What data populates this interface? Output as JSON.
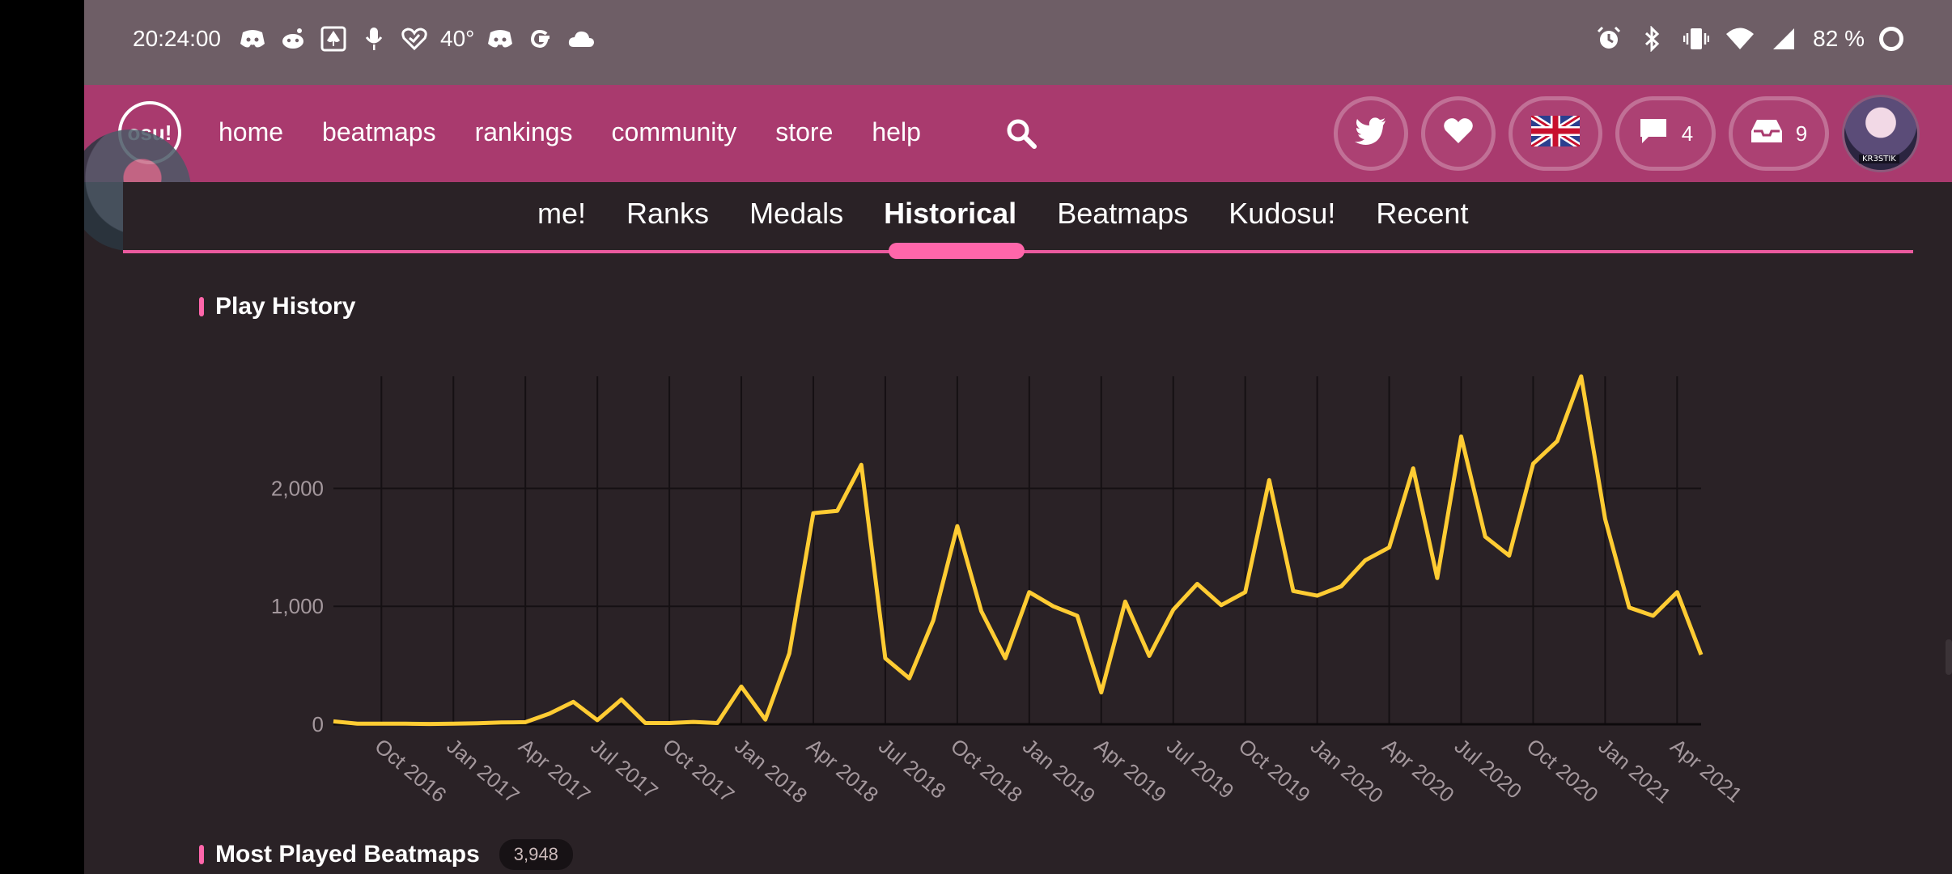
{
  "status_bar": {
    "time": "20:24:00",
    "temperature": "40°",
    "battery": "82 %",
    "left_icons": [
      "discord-icon",
      "reddit-icon",
      "spade-icon",
      "microphone-icon",
      "heart-check-icon"
    ],
    "left_icons_after_temp": [
      "discord-icon",
      "google-icon",
      "cloud-icon"
    ],
    "right_icons": [
      "alarm-icon",
      "bluetooth-icon",
      "vibrate-icon",
      "wifi-icon",
      "signal-icon"
    ]
  },
  "nav": {
    "logo": "osu!",
    "links": [
      "home",
      "beatmaps",
      "rankings",
      "community",
      "store",
      "help"
    ],
    "messages_count": "4",
    "notifications_count": "9",
    "avatar_tag": "KR3STIK"
  },
  "tabs": {
    "items": [
      "me!",
      "Ranks",
      "Medals",
      "Historical",
      "Beatmaps",
      "Kudosu!",
      "Recent"
    ],
    "active": "Historical"
  },
  "sections": {
    "play_history_title": "Play History",
    "most_played_title": "Most Played Beatmaps",
    "most_played_count": "3,948"
  },
  "colors": {
    "accent": "#ff66aa",
    "nav_bg": "#a93a6e",
    "line": "#ffcc33"
  },
  "chart_data": {
    "type": "line",
    "title": "Play History",
    "xlabel": "",
    "ylabel": "",
    "ylim": [
      0,
      2950
    ],
    "y_ticks": [
      0,
      1000,
      2000
    ],
    "y_tick_labels": [
      "0",
      "1,000",
      "2,000"
    ],
    "x_tick_labels": [
      "Oct 2016",
      "Jan 2017",
      "Apr 2017",
      "Jul 2017",
      "Oct 2017",
      "Jan 2018",
      "Apr 2018",
      "Jul 2018",
      "Oct 2018",
      "Jan 2019",
      "Apr 2019",
      "Jul 2019",
      "Oct 2019",
      "Jan 2020",
      "Apr 2020",
      "Jul 2020",
      "Oct 2020",
      "Jan 2021",
      "Apr 2021"
    ],
    "grid": true,
    "series": [
      {
        "values": [
          25,
          5,
          5,
          5,
          3,
          5,
          8,
          15,
          18,
          90,
          190,
          35,
          210,
          10,
          10,
          20,
          10,
          320,
          40,
          600,
          1790,
          1810,
          2200,
          560,
          390,
          880,
          1680,
          960,
          560,
          1120,
          1000,
          920,
          270,
          1040,
          580,
          970,
          1190,
          1010,
          1120,
          2070,
          1130,
          1090,
          1170,
          1390,
          1500,
          2170,
          1240,
          2440,
          1590,
          1430,
          2210,
          2400,
          2950,
          1740,
          990,
          920,
          1120,
          590
        ]
      }
    ]
  }
}
